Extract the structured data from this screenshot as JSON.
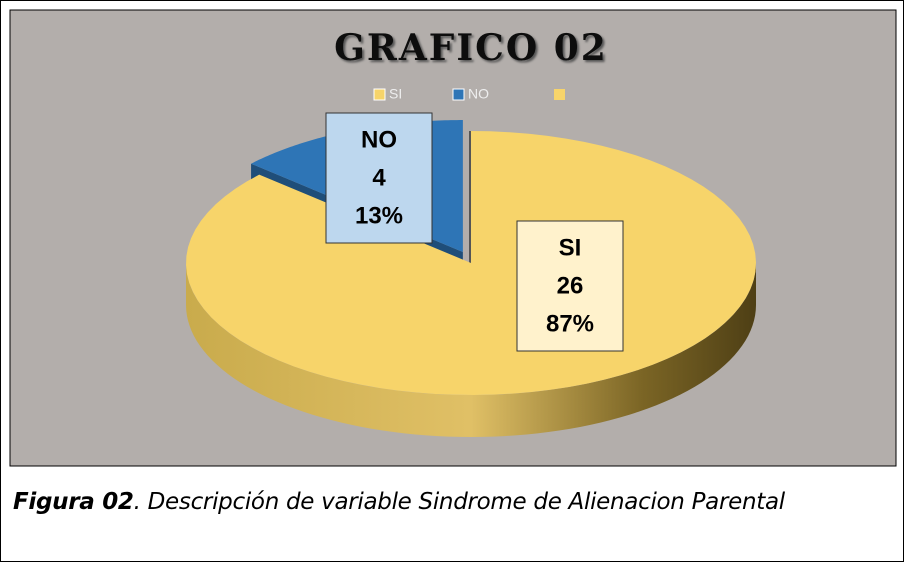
{
  "chart_data": {
    "type": "pie",
    "title": "GRAFICO 02",
    "categories": [
      "SI",
      "NO"
    ],
    "values": [
      26,
      4
    ],
    "percent_labels": [
      "87%",
      "13%"
    ],
    "colors": [
      "#f7d46a",
      "#2e75b6"
    ],
    "label_colors": [
      "#fff2cc",
      "#bdd7ee"
    ],
    "legend": "top"
  },
  "caption": {
    "label": "Figura 02",
    "text": ". Descripción de variable Sindrome de Alienacion Parental"
  }
}
